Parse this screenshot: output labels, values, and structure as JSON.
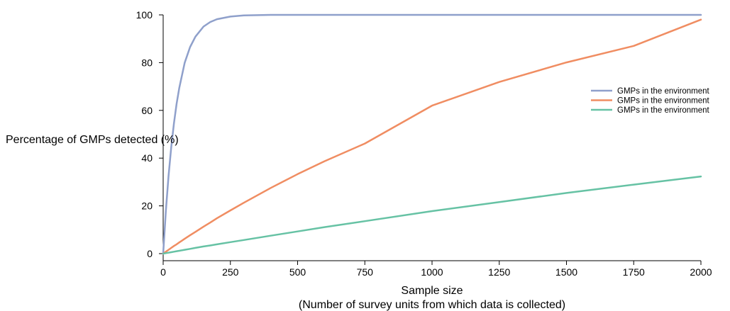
{
  "chart_data": {
    "type": "line",
    "title": "",
    "xlabel": "Sample size",
    "xlabel_sub": "(Number of survey units from which data is collected)",
    "ylabel": "Percentage of GMPs detected (%)",
    "xlim": [
      0,
      2000
    ],
    "ylim": [
      0,
      100
    ],
    "x_ticks": [
      0,
      250,
      500,
      750,
      1000,
      1250,
      1500,
      1750,
      2000
    ],
    "y_ticks": [
      0,
      20,
      40,
      60,
      80,
      100
    ],
    "grid": false,
    "legend_position": "right",
    "x": [
      0,
      10,
      20,
      30,
      40,
      50,
      60,
      80,
      100,
      120,
      150,
      175,
      200,
      250,
      300,
      400,
      500,
      600,
      750,
      1000,
      1250,
      1500,
      1750,
      2000
    ],
    "series": [
      {
        "name": "GMPs in the environment",
        "color": "#8fa0cb",
        "values": [
          0,
          17.9,
          32.6,
          44.7,
          54.6,
          62.7,
          69.4,
          79.9,
          86.5,
          90.9,
          95.1,
          97.0,
          98.2,
          99.3,
          99.8,
          100,
          100,
          100,
          100,
          100,
          100,
          100,
          100,
          100
        ]
      },
      {
        "name": "GMPs in the environment",
        "color": "#f08d62",
        "values": [
          0,
          0.8,
          1.6,
          2.4,
          3.2,
          3.9,
          4.7,
          6.2,
          7.7,
          9.1,
          11.3,
          13.0,
          14.8,
          18.1,
          21.3,
          27.5,
          33.3,
          38.7,
          46.1,
          62.0,
          71.9,
          80.1,
          87.0,
          98.0
        ]
      },
      {
        "name": "GMPs in the environment",
        "color": "#66c2a4",
        "values": [
          0,
          0.2,
          0.4,
          0.6,
          0.8,
          1.0,
          1.2,
          1.6,
          2.0,
          2.4,
          3.0,
          3.4,
          3.9,
          4.8,
          5.7,
          7.5,
          9.3,
          11.1,
          13.6,
          17.8,
          21.6,
          25.4,
          28.9,
          32.3
        ]
      }
    ]
  }
}
